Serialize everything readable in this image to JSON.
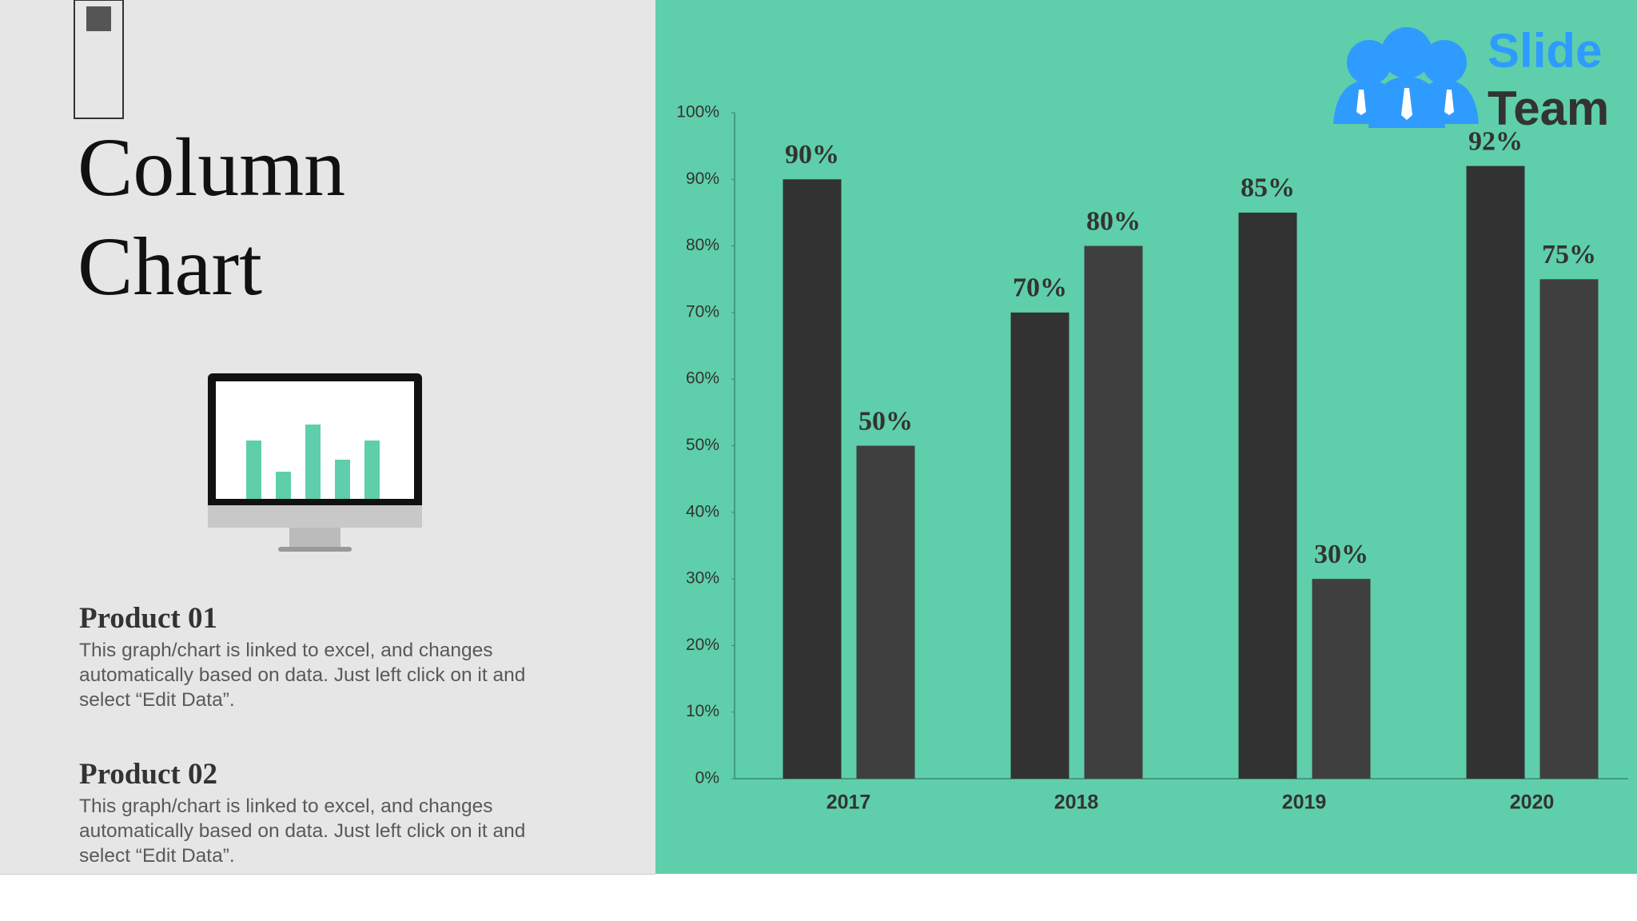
{
  "left_panel": {
    "title": "Column Chart",
    "products": [
      {
        "heading": "Product 01",
        "text": "This graph/chart is linked to excel, and changes automatically based on data. Just left click on it and select “Edit Data”."
      },
      {
        "heading": "Product 02",
        "text": "This graph/chart is linked to excel, and changes automatically based on data. Just left click on it and select “Edit Data”."
      }
    ]
  },
  "logo": {
    "line1": "Slide",
    "line2": "Team"
  },
  "chart_data": {
    "type": "bar",
    "categories": [
      "2017",
      "2018",
      "2019",
      "2020"
    ],
    "series": [
      {
        "color": "#333233",
        "values": [
          90,
          70,
          85,
          92
        ],
        "value_labels": [
          "90%",
          "70%",
          "85%",
          "92%"
        ]
      },
      {
        "color": "#403f40",
        "values": [
          50,
          80,
          30,
          75
        ],
        "value_labels": [
          "50%",
          "80%",
          "30%",
          "75%"
        ]
      }
    ],
    "ylim": [
      0,
      100
    ],
    "yticks": [
      {
        "value": 0,
        "label": "0%"
      },
      {
        "value": 10,
        "label": "10%"
      },
      {
        "value": 20,
        "label": "20%"
      },
      {
        "value": 30,
        "label": "30%"
      },
      {
        "value": 40,
        "label": "40%"
      },
      {
        "value": 50,
        "label": "50%"
      },
      {
        "value": 60,
        "label": "60%"
      },
      {
        "value": 70,
        "label": "70%"
      },
      {
        "value": 80,
        "label": "80%"
      },
      {
        "value": 90,
        "label": "90%"
      },
      {
        "value": 100,
        "label": "100%"
      }
    ],
    "grid": false
  }
}
